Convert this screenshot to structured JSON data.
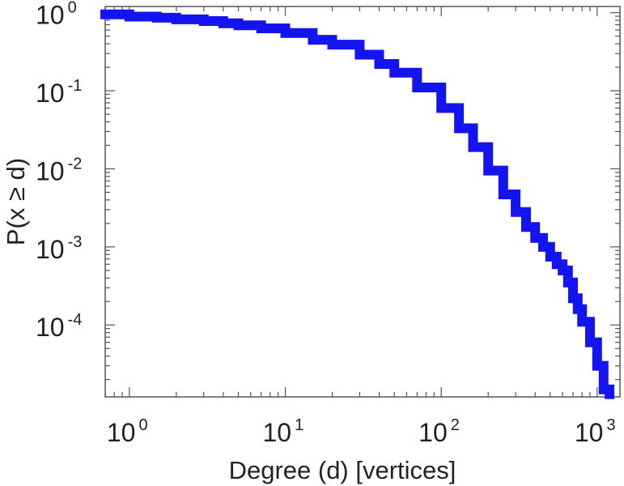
{
  "chart_data": {
    "type": "line",
    "title": "",
    "xlabel": "Degree (d) [vertices]",
    "ylabel": "P(x ≥ d)",
    "xscale": "log",
    "yscale": "log",
    "xlim": [
      0.7,
      1400
    ],
    "ylim": [
      1.2e-05,
      1.2
    ],
    "grid": false,
    "legend": "none",
    "series_color": "#1414f0",
    "x_ticks": [
      {
        "base": "10",
        "exp": "0",
        "value": 1
      },
      {
        "base": "10",
        "exp": "1",
        "value": 10
      },
      {
        "base": "10",
        "exp": "2",
        "value": 100
      },
      {
        "base": "10",
        "exp": "3",
        "value": 1000
      }
    ],
    "y_ticks": [
      {
        "base": "10",
        "exp": "0",
        "value": 1
      },
      {
        "base": "10",
        "exp": "-1",
        "value": 0.1
      },
      {
        "base": "10",
        "exp": "-2",
        "value": 0.01
      },
      {
        "base": "10",
        "exp": "-3",
        "value": 0.001
      },
      {
        "base": "10",
        "exp": "-4",
        "value": 0.0001
      }
    ],
    "series": [
      {
        "x": [
          0.7,
          1,
          1.5,
          2,
          3,
          4,
          5,
          7,
          10,
          15,
          20,
          30,
          40,
          50,
          70,
          100,
          130,
          160,
          200,
          250,
          300,
          350,
          400,
          450,
          500,
          550,
          600,
          650,
          700,
          750,
          800,
          900,
          1000,
          1100,
          1200
        ],
        "y": [
          0.95,
          0.89,
          0.86,
          0.82,
          0.78,
          0.73,
          0.69,
          0.63,
          0.55,
          0.45,
          0.39,
          0.29,
          0.22,
          0.17,
          0.11,
          0.06,
          0.033,
          0.019,
          0.0095,
          0.0047,
          0.0028,
          0.0018,
          0.0013,
          0.001,
          0.00075,
          0.0006,
          0.0005,
          0.00035,
          0.00022,
          0.00016,
          0.00011,
          6e-05,
          3e-05,
          1.5e-05,
          1.3e-05
        ]
      }
    ]
  }
}
